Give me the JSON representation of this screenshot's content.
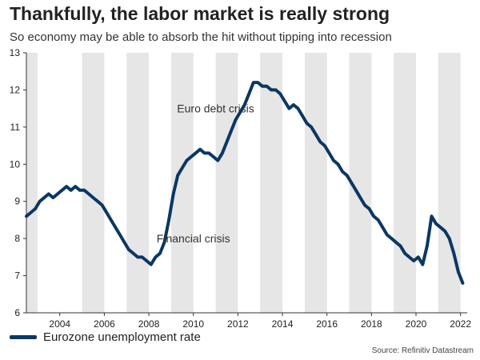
{
  "header": {
    "title": "Thankfully, the labor market is really strong",
    "subtitle": "So economy may be able to absorb the hit without tipping into recession"
  },
  "legend": {
    "label": "Eurozone unemployment rate"
  },
  "source": "Source: Refinitiv Datastream",
  "colors": {
    "line": "#0b3763",
    "band": "#e6e6e6",
    "axis": "#333333",
    "annotation": "#333333"
  },
  "chart_data": {
    "type": "line",
    "title": "Thankfully, the labor market is really strong",
    "subtitle": "So economy may be able to absorb the hit without tipping into recession",
    "xlabel": "",
    "ylabel": "",
    "xlim": [
      2002.5,
      2022.3
    ],
    "ylim": [
      6,
      13
    ],
    "x_ticks": [
      "2004",
      "2006",
      "2008",
      "2010",
      "2012",
      "2014",
      "2016",
      "2018",
      "2020",
      "2022"
    ],
    "y_ticks": [
      "6",
      "7",
      "8",
      "9",
      "10",
      "11",
      "12",
      "13"
    ],
    "grid": false,
    "legend_position": "bottom-left",
    "shaded_years": [
      2002,
      2005,
      2007,
      2009,
      2011,
      2013,
      2015,
      2017,
      2019,
      2021
    ],
    "annotations": [
      {
        "text": "Euro debt crisis",
        "x": 2011.0,
        "y": 11.5
      },
      {
        "text": "Financial crisis",
        "x": 2010.0,
        "y": 8.0
      }
    ],
    "series": [
      {
        "name": "Eurozone unemployment rate",
        "x": [
          2002.5,
          2002.7,
          2002.9,
          2003.1,
          2003.3,
          2003.5,
          2003.7,
          2003.9,
          2004.1,
          2004.3,
          2004.5,
          2004.7,
          2004.9,
          2005.1,
          2005.3,
          2005.5,
          2005.7,
          2005.9,
          2006.1,
          2006.3,
          2006.5,
          2006.7,
          2006.9,
          2007.1,
          2007.3,
          2007.5,
          2007.7,
          2007.9,
          2008.1,
          2008.3,
          2008.5,
          2008.7,
          2008.9,
          2009.1,
          2009.3,
          2009.5,
          2009.7,
          2009.9,
          2010.1,
          2010.3,
          2010.5,
          2010.7,
          2010.9,
          2011.1,
          2011.3,
          2011.5,
          2011.7,
          2011.9,
          2012.1,
          2012.3,
          2012.5,
          2012.7,
          2012.9,
          2013.1,
          2013.3,
          2013.5,
          2013.7,
          2013.9,
          2014.1,
          2014.3,
          2014.5,
          2014.7,
          2014.9,
          2015.1,
          2015.3,
          2015.5,
          2015.7,
          2015.9,
          2016.1,
          2016.3,
          2016.5,
          2016.7,
          2016.9,
          2017.1,
          2017.3,
          2017.5,
          2017.7,
          2017.9,
          2018.1,
          2018.3,
          2018.5,
          2018.7,
          2018.9,
          2019.1,
          2019.3,
          2019.5,
          2019.7,
          2019.9,
          2020.1,
          2020.3,
          2020.5,
          2020.7,
          2020.9,
          2021.1,
          2021.3,
          2021.5,
          2021.7,
          2021.9,
          2022.1
        ],
        "y": [
          8.6,
          8.7,
          8.8,
          9.0,
          9.1,
          9.2,
          9.1,
          9.2,
          9.3,
          9.4,
          9.3,
          9.4,
          9.3,
          9.3,
          9.2,
          9.1,
          9.0,
          8.9,
          8.7,
          8.5,
          8.3,
          8.1,
          7.9,
          7.7,
          7.6,
          7.5,
          7.5,
          7.4,
          7.3,
          7.5,
          7.6,
          7.9,
          8.5,
          9.2,
          9.7,
          9.9,
          10.1,
          10.2,
          10.3,
          10.4,
          10.3,
          10.3,
          10.2,
          10.1,
          10.3,
          10.6,
          10.9,
          11.2,
          11.4,
          11.6,
          11.9,
          12.2,
          12.2,
          12.1,
          12.1,
          12.0,
          12.0,
          11.9,
          11.7,
          11.5,
          11.6,
          11.5,
          11.3,
          11.1,
          11.0,
          10.8,
          10.6,
          10.5,
          10.3,
          10.1,
          10.0,
          9.8,
          9.7,
          9.5,
          9.3,
          9.1,
          8.9,
          8.8,
          8.6,
          8.5,
          8.3,
          8.1,
          8.0,
          7.9,
          7.8,
          7.6,
          7.5,
          7.4,
          7.5,
          7.3,
          7.8,
          8.6,
          8.4,
          8.3,
          8.2,
          8.0,
          7.6,
          7.1,
          6.8
        ]
      }
    ]
  }
}
